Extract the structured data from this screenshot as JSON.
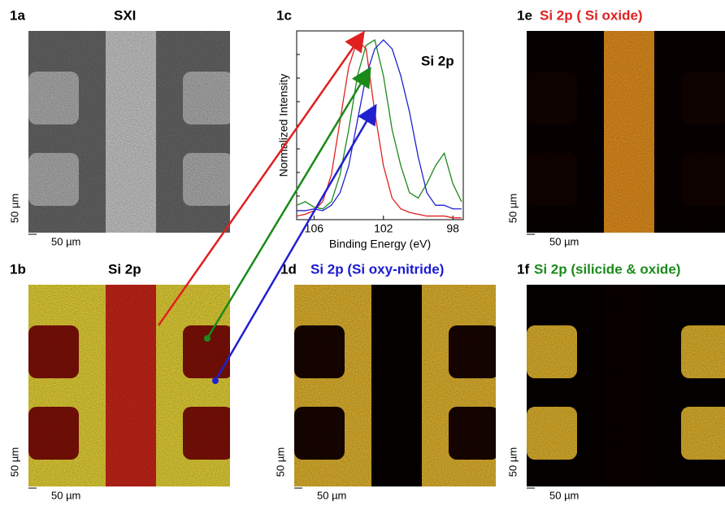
{
  "panels": [
    {
      "label": "1a",
      "title": "SXI",
      "scale_y": "50 µm",
      "scale_x": "50 µm"
    },
    {
      "label": "1b",
      "title": "Si 2p",
      "scale_y": "50 µm",
      "scale_x": "50 µm"
    },
    {
      "label": "1d",
      "title": "Si 2p (Si oxy-nitride)",
      "scale_y": "50 µm",
      "scale_x": "50 µm"
    },
    {
      "label": "1e",
      "title": "Si 2p ( Si oxide)",
      "scale_y": "50 µm",
      "scale_x": "50 µm"
    },
    {
      "label": "1f",
      "title": "Si 2p (silicide & oxide)",
      "scale_y": "50 µm",
      "scale_x": "50 µm"
    }
  ],
  "chart_data": {
    "type": "line",
    "label": "1c",
    "annotation": "Si 2p",
    "x_label": "Binding Energy (eV)",
    "y_label": "Normalized Intensity",
    "xlim": [
      107,
      97.4
    ],
    "xticks": [
      106,
      102,
      98
    ],
    "ylim": [
      0,
      1.05
    ],
    "x": [
      107,
      106.5,
      106,
      105.5,
      105,
      104.5,
      104,
      103.5,
      103,
      102.5,
      102,
      101.5,
      101,
      100.5,
      100,
      99.5,
      99,
      98.5,
      98,
      97.5
    ],
    "series": [
      {
        "color": "#e02020",
        "values": [
          0.02,
          0.03,
          0.05,
          0.1,
          0.25,
          0.55,
          0.85,
          1.0,
          0.95,
          0.6,
          0.3,
          0.12,
          0.06,
          0.04,
          0.03,
          0.02,
          0.02,
          0.02,
          0.01,
          0.01
        ]
      },
      {
        "color": "#1a8a1a",
        "values": [
          0.08,
          0.1,
          0.07,
          0.06,
          0.1,
          0.25,
          0.5,
          0.8,
          0.97,
          1.0,
          0.8,
          0.5,
          0.3,
          0.15,
          0.12,
          0.2,
          0.3,
          0.37,
          0.2,
          0.1
        ]
      },
      {
        "color": "#2020d0",
        "values": [
          0.05,
          0.05,
          0.06,
          0.05,
          0.08,
          0.15,
          0.3,
          0.55,
          0.8,
          0.95,
          1.0,
          0.95,
          0.8,
          0.6,
          0.35,
          0.15,
          0.08,
          0.08,
          0.06,
          0.06
        ]
      }
    ]
  }
}
